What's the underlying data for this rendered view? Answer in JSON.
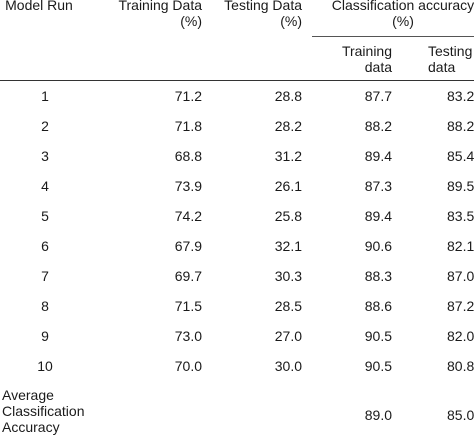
{
  "table": {
    "headers": {
      "model_run": "Model Run",
      "training_data": [
        "Training Data",
        "(%)"
      ],
      "testing_data": [
        "Testing Data",
        "(%)"
      ],
      "classification_accuracy": [
        "Classification accuracy",
        "(%)"
      ],
      "sub_training": [
        "Training",
        "data"
      ],
      "sub_testing": [
        "Testing",
        "data"
      ]
    },
    "rows": [
      {
        "run": "1",
        "training": "71.2",
        "testing": "28.8",
        "acc_train": "87.7",
        "acc_test": "83.2"
      },
      {
        "run": "2",
        "training": "71.8",
        "testing": "28.2",
        "acc_train": "88.2",
        "acc_test": "88.2"
      },
      {
        "run": "3",
        "training": "68.8",
        "testing": "31.2",
        "acc_train": "89.4",
        "acc_test": "85.4"
      },
      {
        "run": "4",
        "training": "73.9",
        "testing": "26.1",
        "acc_train": "87.3",
        "acc_test": "89.5"
      },
      {
        "run": "5",
        "training": "74.2",
        "testing": "25.8",
        "acc_train": "89.4",
        "acc_test": "83.5"
      },
      {
        "run": "6",
        "training": "67.9",
        "testing": "32.1",
        "acc_train": "90.6",
        "acc_test": "82.1"
      },
      {
        "run": "7",
        "training": "69.7",
        "testing": "30.3",
        "acc_train": "88.3",
        "acc_test": "87.0"
      },
      {
        "run": "8",
        "training": "71.5",
        "testing": "28.5",
        "acc_train": "88.6",
        "acc_test": "87.2"
      },
      {
        "run": "9",
        "training": "73.0",
        "testing": "27.0",
        "acc_train": "90.5",
        "acc_test": "82.0"
      },
      {
        "run": "10",
        "training": "70.0",
        "testing": "30.0",
        "acc_train": "90.5",
        "acc_test": "80.8"
      }
    ],
    "average": {
      "label": [
        "Average",
        "Classification",
        "Accuracy"
      ],
      "acc_train": "89.0",
      "acc_test": "85.0"
    }
  }
}
